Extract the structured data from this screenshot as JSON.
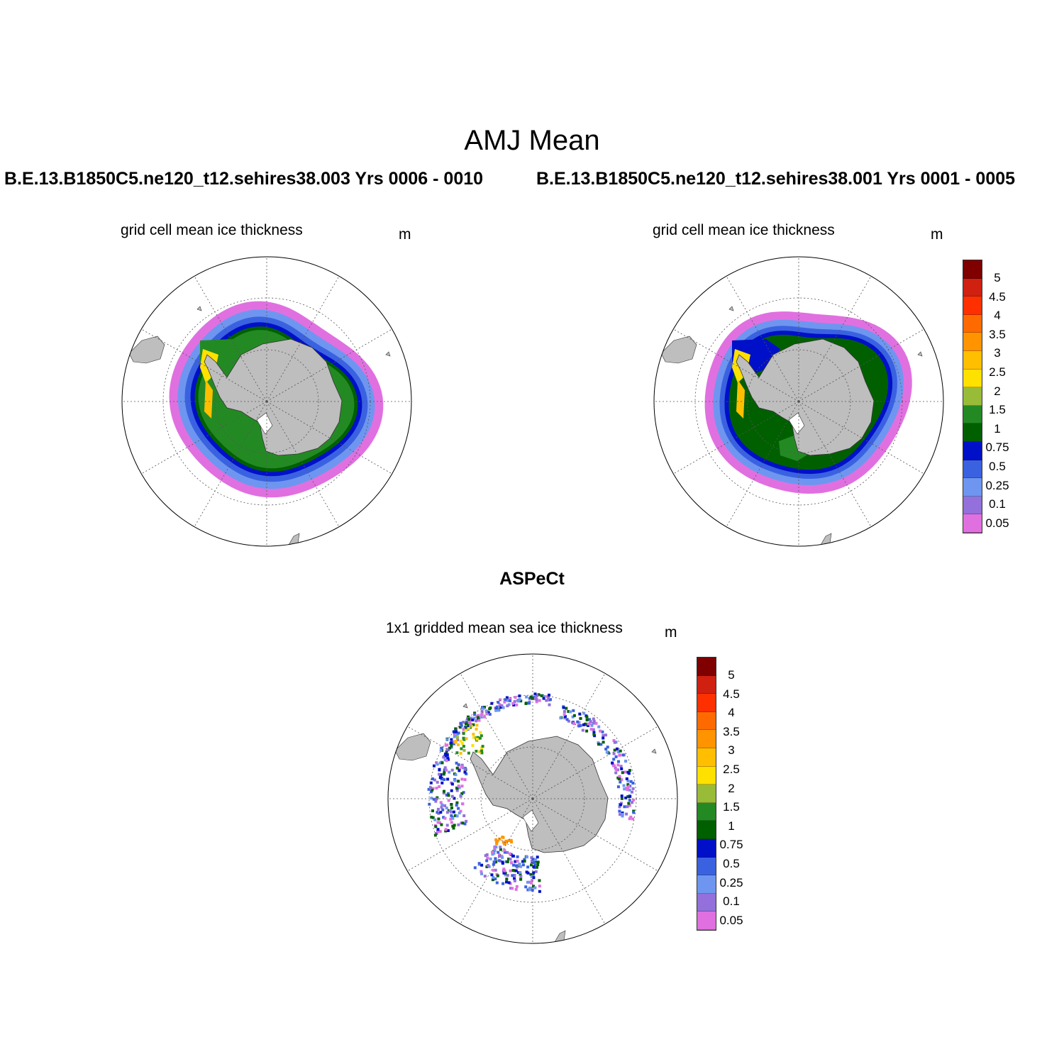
{
  "title": "AMJ Mean",
  "panels": [
    {
      "id": "case",
      "run": "B.E.13.B1850C5.ne120_t12.sehires38.003  Yrs 0006 - 0010",
      "label": "grid cell mean ice thickness",
      "unit": "m"
    },
    {
      "id": "control",
      "run": "B.E.13.B1850C5.ne120_t12.sehires38.001  Yrs 0001 - 0005",
      "label": "grid cell mean ice thickness",
      "unit": "m"
    },
    {
      "id": "obs",
      "run": "ASPeCt",
      "label": "1x1 gridded mean sea ice thickness",
      "unit": "m"
    }
  ],
  "colorbar": {
    "ticks": [
      "5",
      "4.5",
      "4",
      "3.5",
      "3",
      "2.5",
      "2",
      "1.5",
      "1",
      "0.75",
      "0.5",
      "0.25",
      "0.1",
      "0.05"
    ],
    "colors": [
      "#800000",
      "#d02010",
      "#ff3000",
      "#ff6a00",
      "#ff9400",
      "#ffbf00",
      "#ffe100",
      "#98bb38",
      "#238a23",
      "#006000",
      "#0010c8",
      "#3a62e0",
      "#6e96f0",
      "#9370db",
      "#e070e0"
    ]
  },
  "map": {
    "land_color": "#bebebe",
    "grid_color": "#555555"
  }
}
